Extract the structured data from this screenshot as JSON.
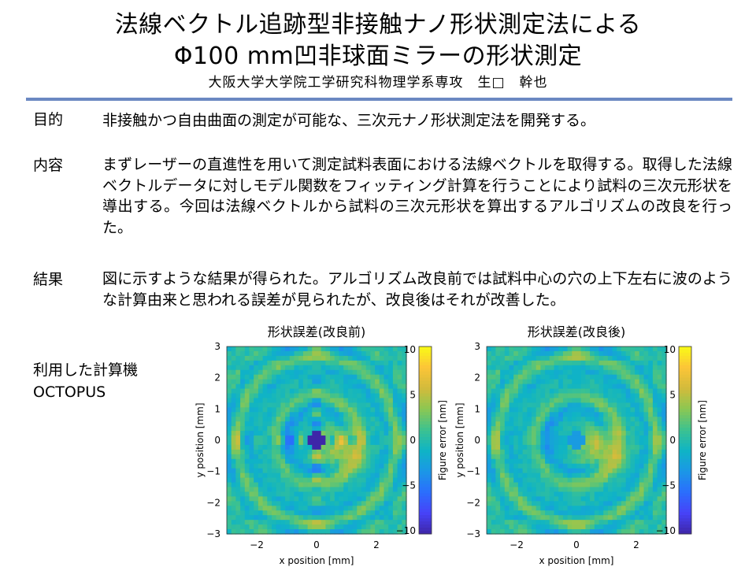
{
  "header": {
    "title_line1": "法線ベクトル追跡型非接触ナノ形状測定法による",
    "title_line2": "Φ100 mm凹非球面ミラーの形状測定",
    "author": "大阪大学大学院工学研究科物理学系専攻　生□　幹也"
  },
  "sections": {
    "goal": {
      "label": "目的",
      "text": "非接触かつ自由曲面の測定が可能な、三次元ナノ形状測定法を開発する。"
    },
    "content": {
      "label": "内容",
      "text": "まずレーザーの直進性を用いて測定試料表面における法線ベクトルを取得する。取得した法線ベクトルデータに対しモデル関数をフィッティング計算を行うことにより試料の三次元形状を導出する。今回は法線ベクトルから試料の三次元形状を算出するアルゴリズムの改良を行った。"
    },
    "result": {
      "label": "結果",
      "text": "図に示すような結果が得られた。アルゴリズム改良前では試料中心の穴の上下左右に波のような計算由来と思われる誤差が見られたが、改良後はそれが改善した。"
    },
    "computer": {
      "label": "利用した計算機",
      "name": "OCTOPUS"
    }
  },
  "chart_data": [
    {
      "type": "heatmap",
      "title": "形状誤差(改良前)",
      "xlabel": "x position [mm]",
      "ylabel": "y position [mm]",
      "colorbar_label": "Figure error [nm]",
      "xlim": [
        -3,
        3
      ],
      "ylim": [
        -3,
        3
      ],
      "clim": [
        -10,
        10
      ],
      "xticks": [
        "−2",
        "0",
        "2"
      ],
      "yticks": [
        "3",
        "2",
        "1",
        "0",
        "−1",
        "−2",
        "−3"
      ],
      "cticks": [
        "10",
        "5",
        "0",
        "−5",
        "−10"
      ],
      "colormap": "parula",
      "features": "concentric ripples with cross-shaped wave artifacts along x=0 and y=0 around the central hole; positive lobe to the lower right of center"
    },
    {
      "type": "heatmap",
      "title": "形状誤差(改良後)",
      "xlabel": "x position [mm]",
      "ylabel": "y position [mm]",
      "colorbar_label": "Figure error [nm]",
      "xlim": [
        -3,
        3
      ],
      "ylim": [
        -3,
        3
      ],
      "clim": [
        -10,
        10
      ],
      "xticks": [
        "−2",
        "0",
        "2"
      ],
      "yticks": [
        "3",
        "2",
        "1",
        "0",
        "−1",
        "−2",
        "−3"
      ],
      "cticks": [
        "10",
        "5",
        "0",
        "−5",
        "−10"
      ],
      "colormap": "parula",
      "features": "concentric ripples without cross artifacts; ring of positive error on the right side"
    }
  ],
  "colors": {
    "rule": "#6b88c2",
    "parula": [
      "#3e26a8",
      "#4743f8",
      "#2b6efd",
      "#1b97e6",
      "#0fb4c5",
      "#3dc28f",
      "#8cc752",
      "#d3bb3b",
      "#fcc538",
      "#f9fb15"
    ]
  }
}
